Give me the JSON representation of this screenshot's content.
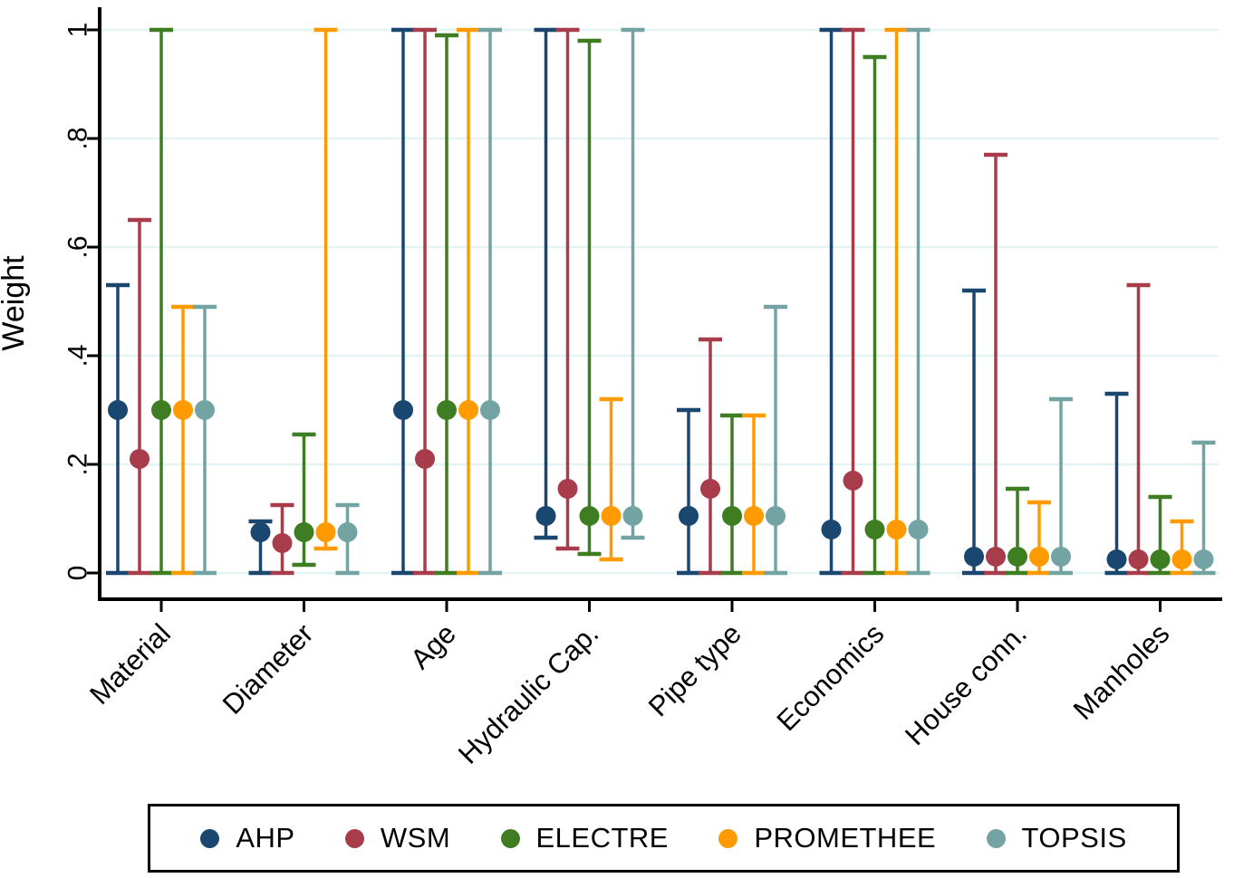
{
  "chart_data": {
    "type": "scatter",
    "subtype": "point-estimate-with-range-caps",
    "title": "",
    "xlabel": "",
    "ylabel": "Weight",
    "ylim": [
      0,
      1
    ],
    "ytick_labels": [
      "0",
      ".2",
      ".4",
      ".6",
      ".8",
      "1"
    ],
    "ytick_values": [
      0,
      0.2,
      0.4,
      0.6,
      0.8,
      1
    ],
    "grid": "horizontal pale-cyan gridlines at each y tick",
    "grid_color": "#e3f3f2",
    "axis_color": "#000000",
    "legend_position": "bottom, boxed, horizontal",
    "categories": [
      "Material",
      "Diameter",
      "Age",
      "Hydraulic Cap.",
      "Pipe type",
      "Economics",
      "House conn.",
      "Manholes"
    ],
    "series": [
      {
        "name": "AHP",
        "color": "#1a476f",
        "values": [
          0.3,
          0.075,
          0.3,
          0.105,
          0.105,
          0.08,
          0.03,
          0.025
        ],
        "lo": [
          0,
          0,
          0,
          0.065,
          0,
          0,
          0,
          0
        ],
        "hi": [
          0.53,
          0.095,
          1.0,
          1.0,
          0.3,
          1.0,
          0.52,
          0.33
        ]
      },
      {
        "name": "WSM",
        "color": "#a83c4a",
        "values": [
          0.21,
          0.055,
          0.21,
          0.155,
          0.155,
          0.17,
          0.03,
          0.025
        ],
        "lo": [
          0,
          0,
          0,
          0.045,
          0,
          0,
          0,
          0
        ],
        "hi": [
          0.65,
          0.125,
          1.0,
          1.0,
          0.43,
          1.0,
          0.77,
          0.53
        ]
      },
      {
        "name": "ELECTRE",
        "color": "#3f7d23",
        "values": [
          0.3,
          0.075,
          0.3,
          0.105,
          0.105,
          0.08,
          0.03,
          0.025
        ],
        "lo": [
          0,
          0.015,
          0,
          0.035,
          0,
          0,
          0,
          0
        ],
        "hi": [
          1.0,
          0.255,
          0.99,
          0.98,
          0.29,
          0.95,
          0.155,
          0.14
        ]
      },
      {
        "name": "PROMETHEE",
        "color": "#ff9a00",
        "values": [
          0.3,
          0.075,
          0.3,
          0.105,
          0.105,
          0.08,
          0.03,
          0.025
        ],
        "lo": [
          0,
          0.045,
          0,
          0.025,
          0,
          0,
          0,
          0
        ],
        "hi": [
          0.49,
          1.0,
          1.0,
          0.32,
          0.29,
          1.0,
          0.13,
          0.095
        ]
      },
      {
        "name": "TOPSIS",
        "color": "#74a3a3",
        "values": [
          0.3,
          0.075,
          0.3,
          0.105,
          0.105,
          0.08,
          0.03,
          0.025
        ],
        "lo": [
          0,
          0,
          0,
          0.065,
          0,
          0,
          0,
          0
        ],
        "hi": [
          0.49,
          0.125,
          1.0,
          1.0,
          0.49,
          1.0,
          0.32,
          0.24
        ]
      }
    ]
  }
}
